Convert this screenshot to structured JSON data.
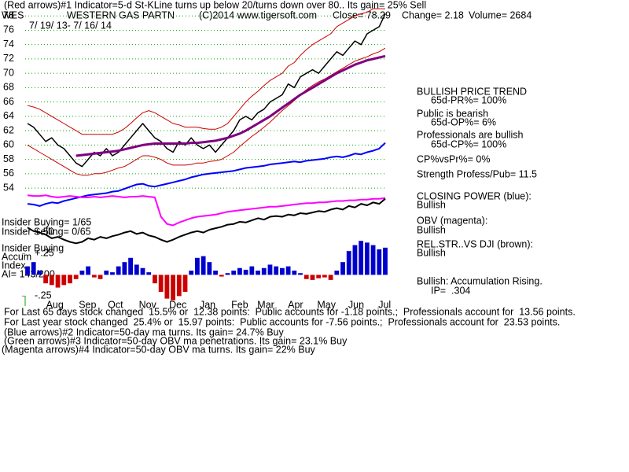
{
  "header": {
    "signal": "(Red arrows)#1 Indicator=5-d St-KLine turns up below 20/turns down over 80.. Its gain= 25% Sell",
    "symbol": "WES",
    "name": "WESTERN GAS PARTN",
    "copyright": "(C)2014 www.tigersoft.com",
    "close": "Close= 78.29",
    "change": "Change= 2.18",
    "volume": "Volume= 2684",
    "dates": "7/ 19/ 13- 7/ 16/ 14"
  },
  "side": {
    "trend": "BULLISH PRICE TREND",
    "pr": "65d-PR%= 100%",
    "public": "Public is bearish",
    "op": "65d-OP%= 6%",
    "pros": "Professionals are bullish",
    "cp": "65d-CP%= 100%",
    "cpvspr": "CP%vsPr%= 0%",
    "strength": "Strength Profess/Pub= 11.5",
    "cp_title": "CLOSING POWER (blue):",
    "cp_state": "Bullish",
    "obv_title": "OBV (magenta):",
    "obv_state": "Bullish",
    "rs_title": "REL.STR..VS DJI (brown):",
    "rs_state": "Bullish",
    "accum": "Bullish: Accumulation Rising.",
    "ip": "IP=  .304"
  },
  "left": {
    "insider_buying": "Insider Buying= 1/65",
    "insider_selling": "Insider Selling= 0/65",
    "insider_buying_2": "Insider Buying",
    "accum": "Accum",
    "index": "Index",
    "ai": "AI= 143/200"
  },
  "notes": [
    "For Last 65 days stock changed  15.5% or  12.38 points:  Public accounts for -1.18 points.;  Professionals account for  13.56 points.",
    "For Last year stock changed  25.4% or  15.97 points:  Public accounts for -7.56 points.;  Professionals account for  23.53 points.",
    "(Blue arrows)#2 Indicator=50-day ma turns. Its gain= 24.7% Buy",
    "(Green arrows)#3 Indicator=50-day OBV ma penetrations. Its gain= 23.1% Buy",
    "(Magenta arrows)#4 Indicator=50-day OBV ma turns. Its gain= 22% Buy"
  ],
  "chart_data": [
    {
      "type": "line",
      "xlim": [
        0,
        59
      ],
      "ylim": [
        42,
        78.9
      ],
      "grid": true,
      "yticks": [
        54,
        56,
        58,
        60,
        62,
        64,
        66,
        68,
        70,
        72,
        74,
        76,
        78
      ],
      "xticks": [
        {
          "value": 4.5,
          "label": "Aug"
        },
        {
          "value": 9.9,
          "label": "Sep"
        },
        {
          "value": 14.5,
          "label": "Oct"
        },
        {
          "value": 19.8,
          "label": "Nov"
        },
        {
          "value": 24.8,
          "label": "Dec"
        },
        {
          "value": 29.7,
          "label": "Jan"
        },
        {
          "value": 35,
          "label": "Feb"
        },
        {
          "value": 39.3,
          "label": "Mar"
        },
        {
          "value": 44.2,
          "label": "Apr"
        },
        {
          "value": 49.3,
          "label": "May"
        },
        {
          "value": 54.2,
          "label": "Jun"
        },
        {
          "value": 58.9,
          "label": "Jul"
        }
      ],
      "series": [
        {
          "color": "#000000",
          "width": 1.5,
          "values": [
            63,
            62.5,
            61.5,
            60.5,
            61,
            60,
            59.5,
            58.5,
            57.5,
            57,
            58,
            59,
            58.5,
            59.5,
            58.5,
            59,
            60,
            61,
            62,
            63,
            62,
            61,
            60.5,
            59.5,
            59,
            60.5,
            60,
            61,
            60,
            59.5,
            60,
            59,
            60,
            61,
            62,
            63.5,
            64,
            63.5,
            64.5,
            65,
            66,
            66.5,
            67,
            68.5,
            68,
            69.5,
            70,
            70.5,
            70,
            71,
            72,
            73,
            72.5,
            73.5,
            74.5,
            74,
            75.5,
            76,
            76.5,
            78.29
          ]
        },
        {
          "color": "#cc0000",
          "width": 1,
          "values": [
            65.5,
            65.3,
            65,
            64.5,
            64,
            63.5,
            63,
            62.5,
            62,
            61.5,
            61.5,
            61.5,
            61.5,
            61.5,
            61.5,
            61.8,
            62.3,
            63,
            63.8,
            64.5,
            64.8,
            64.5,
            64,
            63.5,
            63,
            62.8,
            62.5,
            62.5,
            62.5,
            62.3,
            62.2,
            62.2,
            62.5,
            63,
            64,
            65,
            66,
            66.8,
            67.5,
            68.3,
            69,
            69.5,
            70,
            71,
            71.5,
            72.5,
            73.3,
            74,
            74.5,
            75,
            75.5,
            76.5,
            77,
            77.5,
            78,
            78.3,
            78.5,
            79,
            79,
            79
          ]
        },
        {
          "color": "#cc0000",
          "width": 1,
          "values": [
            60,
            59.5,
            59,
            58.5,
            58,
            57.5,
            57,
            56.5,
            56,
            55.8,
            55.8,
            56,
            56,
            56.2,
            56.5,
            56.8,
            57,
            57.5,
            58,
            58.5,
            58.5,
            58.3,
            58,
            57.5,
            57.2,
            57.2,
            57.2,
            57.3,
            57.5,
            57.5,
            57.7,
            57.8,
            58,
            58.5,
            59,
            59.8,
            60.5,
            61.2,
            61.8,
            62.5,
            63.2,
            64,
            64.8,
            65.5,
            66.2,
            67,
            67.7,
            68.3,
            68.8,
            69.2,
            69.7,
            70.2,
            70.7,
            71.2,
            71.7,
            72,
            72.3,
            72.7,
            73,
            73.5
          ]
        },
        {
          "color": "#800080",
          "width": 3,
          "values": [
            null,
            null,
            null,
            null,
            null,
            null,
            null,
            null,
            58.5,
            58.6,
            58.7,
            58.8,
            58.9,
            59,
            59.1,
            59.2,
            59.4,
            59.6,
            59.8,
            60,
            60.1,
            60.2,
            60.2,
            60.2,
            60.2,
            60.2,
            60.2,
            60.3,
            60.3,
            60.4,
            60.5,
            60.6,
            60.8,
            61,
            61.3,
            61.6,
            62,
            62.5,
            63,
            63.5,
            64,
            64.6,
            65.2,
            65.8,
            66.4,
            67,
            67.5,
            68,
            68.5,
            69,
            69.5,
            70,
            70.4,
            70.8,
            71.2,
            71.5,
            71.8,
            72,
            72.2,
            72.4
          ]
        },
        {
          "color": "#0000ff",
          "width": 2,
          "values": [
            51.8,
            51.7,
            51.5,
            51.8,
            52,
            51.9,
            52.2,
            52.4,
            52.6,
            52.8,
            53,
            53.1,
            53.2,
            53.3,
            53.5,
            53.6,
            53.9,
            54.2,
            54.5,
            54.6,
            54.3,
            54.2,
            54.4,
            54.6,
            54.8,
            55,
            55.2,
            55.5,
            55.7,
            55.9,
            56,
            56.1,
            56.2,
            56.3,
            56.4,
            56.6,
            56.8,
            56.9,
            57,
            57.1,
            57.3,
            57.4,
            57.5,
            57.6,
            57.7,
            57.6,
            57.8,
            57.9,
            58,
            58.1,
            58.3,
            58.4,
            58.3,
            58.5,
            58.8,
            58.7,
            59,
            59.2,
            59.5,
            60.3
          ]
        },
        {
          "color": "#ff00ff",
          "width": 2,
          "values": [
            53,
            52.9,
            52.9,
            53,
            52.8,
            52.7,
            52.8,
            52.9,
            52.8,
            52.7,
            52.7,
            52.8,
            52.7,
            52.8,
            52.9,
            52.8,
            52.7,
            52.8,
            52.8,
            52.9,
            52.8,
            52.7,
            50,
            49,
            48.8,
            49.2,
            49.5,
            49.8,
            50,
            50.1,
            50.2,
            50.3,
            50.5,
            50.7,
            50.8,
            50.9,
            51,
            51.1,
            51.2,
            51.3,
            51.4,
            51.4,
            51.5,
            51.6,
            51.7,
            51.8,
            51.9,
            51.9,
            52,
            52,
            52.1,
            52.2,
            52.2,
            52.3,
            52.3,
            52.4,
            52.4,
            52.5,
            52.5,
            52.6
          ]
        },
        {
          "color": "#000000",
          "width": 2,
          "values": [
            48.5,
            48,
            47.8,
            47.5,
            47,
            47.2,
            46.8,
            46.5,
            46.3,
            46.5,
            47,
            46.8,
            47.2,
            47,
            47.3,
            47.5,
            47.8,
            48,
            47.6,
            47.8,
            47.4,
            47.2,
            46.8,
            46.5,
            46.8,
            47.2,
            47.5,
            47.8,
            48,
            47.8,
            48.2,
            48.4,
            48.6,
            48.9,
            49,
            49.3,
            49.2,
            49.5,
            49.8,
            49.6,
            50,
            50.1,
            50,
            50.3,
            50.2,
            50.5,
            50.4,
            50.6,
            50.8,
            50.7,
            51,
            51.2,
            51,
            51.5,
            51.3,
            51.8,
            51.6,
            52,
            51.8,
            52.5
          ]
        }
      ]
    },
    {
      "type": "bar",
      "xlim": [
        0,
        59
      ],
      "ylim": [
        -0.33,
        0.55
      ],
      "color": "#0000cc",
      "negative_color": "#cc0000",
      "yticks": [
        {
          "value": 0.5,
          "label": "+.50"
        },
        {
          "value": 0.25,
          "label": "+.25"
        },
        {
          "value": -0.25,
          "label": "-.25"
        }
      ],
      "values": [
        0.1,
        0.15,
        0.05,
        -0.1,
        -0.12,
        -0.15,
        -0.12,
        -0.1,
        -0.05,
        0.05,
        0.1,
        -0.03,
        -0.05,
        0.05,
        0.03,
        0.1,
        0.15,
        0.2,
        0.12,
        0.08,
        0.03,
        -0.1,
        -0.2,
        -0.28,
        -0.3,
        -0.25,
        -0.2,
        0.05,
        0.2,
        0.22,
        0.15,
        0.05,
        -0.02,
        0.02,
        0.05,
        0.08,
        0.06,
        0.1,
        0.05,
        0.08,
        0.12,
        0.1,
        0.08,
        0.1,
        0.05,
        0.02,
        -0.05,
        -0.06,
        -0.04,
        -0.03,
        -0.06,
        0.05,
        0.15,
        0.28,
        0.35,
        0.4,
        0.38,
        0.35,
        0.3,
        0.32
      ]
    }
  ]
}
